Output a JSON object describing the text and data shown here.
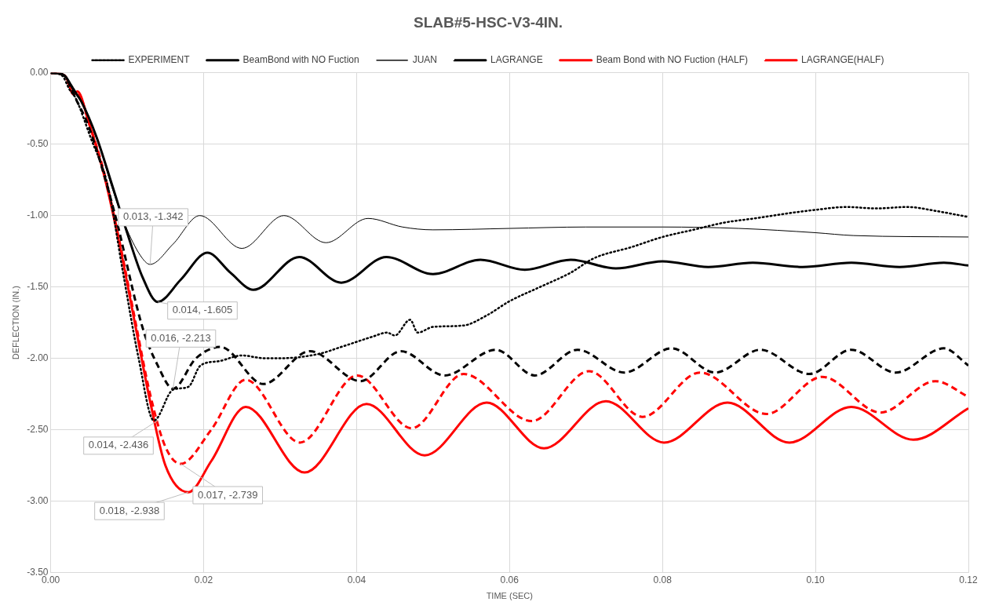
{
  "chart_data": {
    "type": "line",
    "title": "SLAB#5-HSC-V3-4IN.",
    "xlabel": "TIME (SEC)",
    "ylabel": "DEFLECTION (IN.)",
    "xlim": [
      0,
      0.12
    ],
    "xticks": [
      {
        "value": 0,
        "label": "0.00"
      },
      {
        "value": 0.02,
        "label": "0.02"
      },
      {
        "value": 0.04,
        "label": "0.04"
      },
      {
        "value": 0.06,
        "label": "0.06"
      },
      {
        "value": 0.08,
        "label": "0.08"
      },
      {
        "value": 0.1,
        "label": "0.10"
      },
      {
        "value": 0.12,
        "label": "0.12"
      }
    ],
    "ylim": [
      -3.5,
      0
    ],
    "yticks": [
      {
        "value": 0,
        "label": "0.00"
      },
      {
        "value": -0.5,
        "label": "-0.50"
      },
      {
        "value": -1,
        "label": "-1.00"
      },
      {
        "value": -1.5,
        "label": "-1.50"
      },
      {
        "value": -2,
        "label": "-2.00"
      },
      {
        "value": -2.5,
        "label": "-2.50"
      },
      {
        "value": -3,
        "label": "-3.00"
      },
      {
        "value": -3.5,
        "label": "-3.50"
      }
    ],
    "grid": true,
    "legend": "top",
    "marker": "none",
    "series": [
      {
        "name": "EXPERIMENT",
        "color": "#000000",
        "line_style": "dotted",
        "x": [
          0,
          0.0015,
          0.0025,
          0.0032,
          0.0052,
          0.0075,
          0.0094,
          0.0115,
          0.0135,
          0.016,
          0.018,
          0.0196,
          0.022,
          0.025,
          0.028,
          0.03,
          0.035,
          0.038,
          0.042,
          0.044,
          0.045,
          0.047,
          0.048,
          0.05,
          0.054,
          0.057,
          0.06,
          0.064,
          0.068,
          0.071,
          0.076,
          0.08,
          0.084,
          0.088,
          0.092,
          0.097,
          0.1,
          0.104,
          0.108,
          0.112,
          0.116,
          0.12
        ],
        "values": [
          0,
          -0.02,
          -0.12,
          -0.17,
          -0.45,
          -0.8,
          -1.38,
          -2.0,
          -2.436,
          -2.22,
          -2.2,
          -2.05,
          -2.02,
          -1.98,
          -2.0,
          -2.0,
          -1.97,
          -1.92,
          -1.85,
          -1.82,
          -1.84,
          -1.73,
          -1.82,
          -1.78,
          -1.77,
          -1.7,
          -1.6,
          -1.5,
          -1.4,
          -1.3,
          -1.22,
          -1.15,
          -1.1,
          -1.05,
          -1.02,
          -0.98,
          -0.96,
          -0.94,
          -0.95,
          -0.94,
          -0.97,
          -1.01
        ]
      },
      {
        "name": "BeamBond with NO Fuction",
        "color": "#000000",
        "line_style": "solid",
        "x": [
          0,
          0.0015,
          0.002,
          0.003,
          0.004,
          0.006,
          0.008,
          0.01,
          0.012,
          0.014,
          0.017,
          0.0205,
          0.0235,
          0.0265,
          0.0325,
          0.038,
          0.0439,
          0.05,
          0.0562,
          0.062,
          0.068,
          0.0739,
          0.08,
          0.086,
          0.0918,
          0.0983,
          0.1047,
          0.111,
          0.1168,
          0.12
        ],
        "values": [
          0,
          -0.01,
          -0.03,
          -0.12,
          -0.2,
          -0.45,
          -0.78,
          -1.12,
          -1.43,
          -1.605,
          -1.45,
          -1.26,
          -1.4,
          -1.52,
          -1.29,
          -1.47,
          -1.29,
          -1.41,
          -1.31,
          -1.38,
          -1.31,
          -1.37,
          -1.32,
          -1.36,
          -1.33,
          -1.36,
          -1.33,
          -1.36,
          -1.33,
          -1.35
        ]
      },
      {
        "name": "JUAN",
        "color": "#000000",
        "line_style": "solid",
        "x": [
          0,
          0.0015,
          0.002,
          0.004,
          0.006,
          0.008,
          0.01,
          0.012,
          0.013,
          0.016,
          0.0195,
          0.025,
          0.0305,
          0.036,
          0.0415,
          0.046,
          0.05,
          0.06,
          0.07,
          0.08,
          0.09,
          0.1,
          0.105,
          0.12
        ],
        "values": [
          0,
          -0.01,
          -0.03,
          -0.2,
          -0.45,
          -0.8,
          -1.1,
          -1.3,
          -1.342,
          -1.2,
          -1.0,
          -1.23,
          -1.0,
          -1.19,
          -1.02,
          -1.08,
          -1.1,
          -1.09,
          -1.08,
          -1.08,
          -1.09,
          -1.12,
          -1.14,
          -1.15
        ]
      },
      {
        "name": "LAGRANGE",
        "color": "#000000",
        "line_style": "dashed",
        "x": [
          0,
          0.0015,
          0.002,
          0.003,
          0.005,
          0.0083,
          0.0121,
          0.014,
          0.016,
          0.019,
          0.0222,
          0.0278,
          0.0339,
          0.0405,
          0.0458,
          0.0515,
          0.0582,
          0.0633,
          0.0689,
          0.075,
          0.0812,
          0.0869,
          0.0928,
          0.0992,
          0.1047,
          0.1105,
          0.1168,
          0.12
        ],
        "values": [
          0,
          -0.01,
          -0.03,
          -0.15,
          -0.38,
          -0.97,
          -1.8,
          -2.05,
          -2.213,
          -2.0,
          -1.92,
          -2.18,
          -1.95,
          -2.16,
          -1.95,
          -2.12,
          -1.94,
          -2.12,
          -1.94,
          -2.1,
          -1.93,
          -2.1,
          -1.94,
          -2.11,
          -1.94,
          -2.1,
          -1.93,
          -2.05
        ]
      },
      {
        "name": "Beam Bond with NO Fuction (HALF)",
        "color": "#ff0000",
        "line_style": "solid",
        "x": [
          0,
          0.0015,
          0.002,
          0.003,
          0.0035,
          0.005,
          0.007,
          0.009,
          0.011,
          0.013,
          0.015,
          0.018,
          0.021,
          0.0255,
          0.0332,
          0.0413,
          0.0489,
          0.057,
          0.0645,
          0.0726,
          0.0802,
          0.0885,
          0.0966,
          0.1047,
          0.1128,
          0.12
        ],
        "values": [
          0,
          -0.01,
          -0.03,
          -0.15,
          -0.13,
          -0.35,
          -0.72,
          -1.2,
          -1.75,
          -2.3,
          -2.75,
          -2.938,
          -2.72,
          -2.34,
          -2.8,
          -2.32,
          -2.68,
          -2.31,
          -2.63,
          -2.3,
          -2.59,
          -2.31,
          -2.59,
          -2.34,
          -2.57,
          -2.35
        ]
      },
      {
        "name": "LAGRANGE(HALF)",
        "color": "#ff0000",
        "line_style": "dashed",
        "x": [
          0,
          0.0015,
          0.002,
          0.003,
          0.0035,
          0.005,
          0.007,
          0.009,
          0.011,
          0.013,
          0.015,
          0.017,
          0.021,
          0.0255,
          0.0326,
          0.0401,
          0.0472,
          0.054,
          0.0629,
          0.0704,
          0.0774,
          0.0849,
          0.0936,
          0.1009,
          0.1085,
          0.1157,
          0.12
        ],
        "values": [
          0,
          -0.01,
          -0.03,
          -0.15,
          -0.14,
          -0.35,
          -0.7,
          -1.18,
          -1.72,
          -2.25,
          -2.62,
          -2.739,
          -2.5,
          -2.15,
          -2.59,
          -2.12,
          -2.49,
          -2.11,
          -2.44,
          -2.09,
          -2.41,
          -2.1,
          -2.39,
          -2.13,
          -2.38,
          -2.16,
          -2.27
        ]
      }
    ],
    "annotations": [
      {
        "text": "0.013, -1.342",
        "x": 0.013,
        "y": -1.342
      },
      {
        "text": "0.014, -1.605",
        "x": 0.014,
        "y": -1.605
      },
      {
        "text": "0.016, -2.213",
        "x": 0.016,
        "y": -2.213
      },
      {
        "text": "0.014, -2.436",
        "x": 0.014,
        "y": -2.436
      },
      {
        "text": "0.018, -2.938",
        "x": 0.018,
        "y": -2.938
      },
      {
        "text": "0.017, -2.739",
        "x": 0.017,
        "y": -2.739
      }
    ]
  }
}
